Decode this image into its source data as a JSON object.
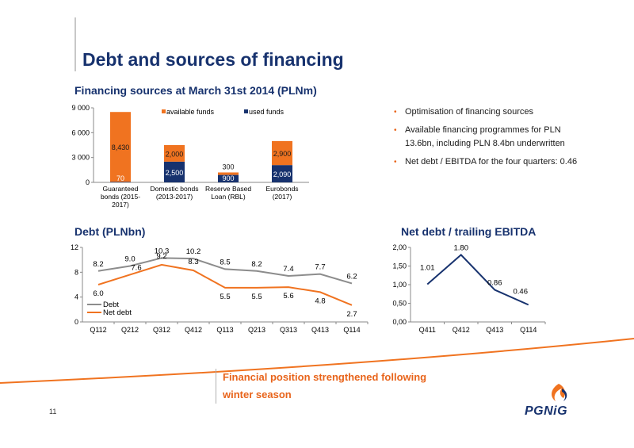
{
  "page": {
    "title": "Debt and sources of financing",
    "page_number": "11",
    "logo_text": "PGNiG",
    "conclusion_lines": [
      "Financial position strengthened following",
      "winter season"
    ],
    "bullets": [
      "Optimisation of financing sources",
      "Available financing programmes for PLN 13.6bn, including PLN 8.4bn underwritten",
      "Net debt / EBITDA for the four quarters: 0.46"
    ]
  },
  "chart_data": [
    {
      "type": "bar",
      "stacked": true,
      "title": "Financing sources at March 31st 2014 (PLNm)",
      "categories": [
        "Guaranteed bonds (2015-2017)",
        "Domestic bonds (2013-2017)",
        "Reserve Based Loan (RBL)",
        "Eurobonds (2017)"
      ],
      "category_lines": [
        [
          "Guaranteed",
          "bonds (2015-",
          "2017)"
        ],
        [
          "Domestic bonds",
          "(2013-2017)"
        ],
        [
          "Reserve Based",
          "Loan (RBL)"
        ],
        [
          "Eurobonds",
          "(2017)"
        ]
      ],
      "series": [
        {
          "name": "used funds",
          "values": [
            70,
            2500,
            900,
            2090
          ],
          "labels": [
            "70",
            "2,500",
            "900",
            "2,090"
          ],
          "color": "#17326e"
        },
        {
          "name": "available funds",
          "values": [
            8430,
            2000,
            300,
            2900
          ],
          "labels": [
            "8,430",
            "2,000",
            "300",
            "2,900"
          ],
          "color": "#f07320"
        }
      ],
      "legend_order": [
        "available funds",
        "used funds"
      ],
      "ylim": [
        0,
        9000
      ],
      "yticks": [
        0,
        3000,
        6000,
        9000
      ],
      "ytick_labels": [
        "0",
        "3 000",
        "6 000",
        "9 000"
      ],
      "legend": "top"
    },
    {
      "type": "line",
      "title": "Debt (PLNbn)",
      "categories": [
        "Q112",
        "Q212",
        "Q312",
        "Q412",
        "Q113",
        "Q213",
        "Q313",
        "Q413",
        "Q114"
      ],
      "series": [
        {
          "name": "Debt",
          "values": [
            8.2,
            9.0,
            10.3,
            10.2,
            8.5,
            8.2,
            7.4,
            7.7,
            6.2
          ],
          "color": "#8c8c8c"
        },
        {
          "name": "Net debt",
          "values": [
            6.0,
            7.6,
            9.2,
            8.3,
            5.5,
            5.5,
            5.6,
            4.8,
            2.7
          ],
          "color": "#f07320"
        }
      ],
      "ylim": [
        0,
        12
      ],
      "yticks": [
        0,
        4,
        8,
        12
      ],
      "legend": "bottom-left"
    },
    {
      "type": "line",
      "title": "Net debt / trailing EBITDA",
      "categories": [
        "Q411",
        "Q412",
        "Q413",
        "Q114"
      ],
      "series": [
        {
          "name": "Net debt / trailing EBITDA",
          "values": [
            1.01,
            1.8,
            0.86,
            0.46
          ],
          "labels": [
            "1.01",
            "1.80",
            "0.86",
            "0.46"
          ],
          "color": "#17326e"
        }
      ],
      "ylim": [
        0,
        2
      ],
      "yticks": [
        0,
        0.5,
        1,
        1.5,
        2
      ],
      "ytick_labels": [
        "0,00",
        "0,50",
        "1,00",
        "1,50",
        "2,00"
      ]
    }
  ]
}
